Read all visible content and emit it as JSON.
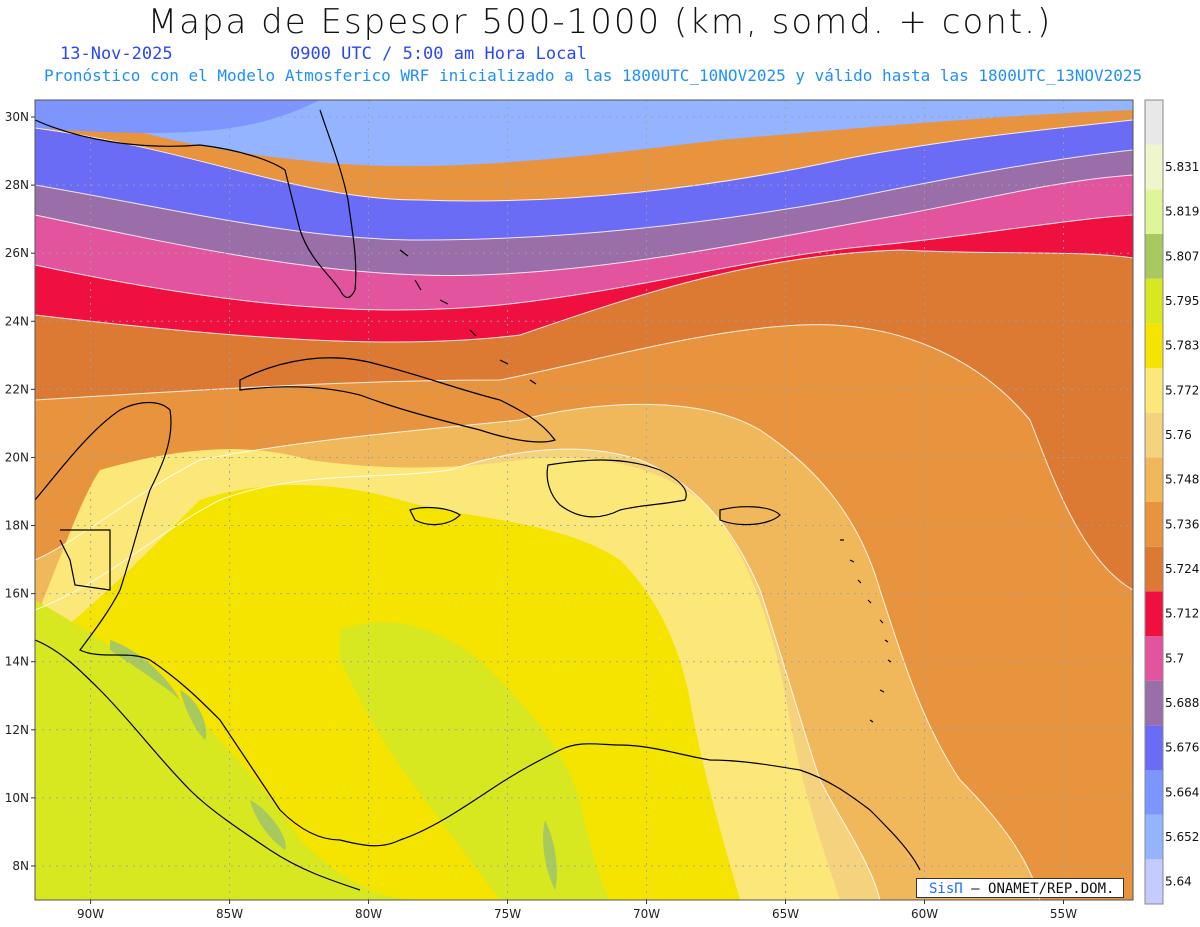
{
  "header": {
    "title": "Mapa de Espesor 500-1000 (km, somd. + cont.)",
    "date": "13-Nov-2025",
    "time": "0900 UTC / 5:00 am Hora Local",
    "subtitle": "Pronóstico con el Modelo Atmosferico WRF inicializado a las 1800UTC_10NOV2025 y válido hasta las  1800UTC_13NOV2025"
  },
  "map": {
    "lon_range": [
      -92,
      -52.5
    ],
    "lat_range": [
      7,
      30.5
    ],
    "lat_ticks": [
      {
        "lat": 30,
        "label": "30N"
      },
      {
        "lat": 28,
        "label": "28N"
      },
      {
        "lat": 26,
        "label": "26N"
      },
      {
        "lat": 24,
        "label": "24N"
      },
      {
        "lat": 22,
        "label": "22N"
      },
      {
        "lat": 20,
        "label": "20N"
      },
      {
        "lat": 18,
        "label": "18N"
      },
      {
        "lat": 16,
        "label": "16N"
      },
      {
        "lat": 14,
        "label": "14N"
      },
      {
        "lat": 12,
        "label": "12N"
      },
      {
        "lat": 10,
        "label": "10N"
      },
      {
        "lat": 8,
        "label": "8N"
      }
    ],
    "lon_ticks": [
      {
        "lon": -90,
        "label": "90W"
      },
      {
        "lon": -85,
        "label": "85W"
      },
      {
        "lon": -80,
        "label": "80W"
      },
      {
        "lon": -75,
        "label": "75W"
      },
      {
        "lon": -70,
        "label": "70W"
      },
      {
        "lon": -65,
        "label": "65W"
      },
      {
        "lon": -60,
        "label": "60W"
      },
      {
        "lon": -55,
        "label": "55W"
      }
    ]
  },
  "legend": {
    "levels": [
      {
        "label": "5.64",
        "color": "#c4ccff"
      },
      {
        "label": "5.652",
        "color": "#94b4ff"
      },
      {
        "label": "5.664",
        "color": "#7d95ff"
      },
      {
        "label": "5.676",
        "color": "#6a6cf5"
      },
      {
        "label": "5.688",
        "color": "#9a6ea8"
      },
      {
        "label": "5.7",
        "color": "#e2559e"
      },
      {
        "label": "5.712",
        "color": "#f01040"
      },
      {
        "label": "5.724",
        "color": "#dc7a34"
      },
      {
        "label": "5.736",
        "color": "#e8943e"
      },
      {
        "label": "5.748",
        "color": "#f0b85a"
      },
      {
        "label": "5.76",
        "color": "#f5d27e"
      },
      {
        "label": "5.772",
        "color": "#fbe878"
      },
      {
        "label": "5.783",
        "color": "#f5e300"
      },
      {
        "label": "5.795",
        "color": "#d8e820"
      },
      {
        "label": "5.807",
        "color": "#a8c860"
      },
      {
        "label": "5.819",
        "color": "#dff59a"
      },
      {
        "label": "5.831",
        "color": "#f0f6cc"
      },
      {
        "label": "",
        "color": "#e8e8e8"
      }
    ]
  },
  "credit": {
    "logo": "SisΠ",
    "text": "– ONAMET/REP.DOM."
  }
}
